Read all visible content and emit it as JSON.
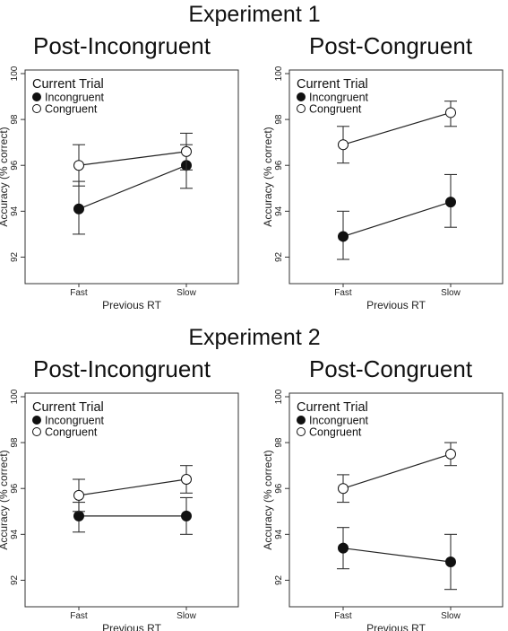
{
  "experiment_titles": [
    "Experiment 1",
    "Experiment 2"
  ],
  "legend": {
    "title": "Current Trial",
    "incongruent": "Incongruent",
    "congruent": "Congruent"
  },
  "colors": {
    "incongruent_fill": "#111111",
    "congruent_fill": "#ffffff",
    "line": "#222222"
  },
  "chart_data": [
    {
      "type": "line",
      "experiment": "Experiment 1",
      "title": "Post-Incongruent",
      "xlabel": "Previous RT",
      "ylabel": "Accuracy (% correct)",
      "categories": [
        "Fast",
        "Slow"
      ],
      "ylim": [
        91,
        100
      ],
      "yticks": [
        "92",
        "94",
        "96",
        "98",
        "100"
      ],
      "legend_position": "top-left",
      "series": [
        {
          "name": "Incongruent",
          "values": [
            94.1,
            96.0
          ],
          "err_low": [
            93.0,
            95.0
          ],
          "err_high": [
            95.3,
            96.9
          ]
        },
        {
          "name": "Congruent",
          "values": [
            96.0,
            96.6
          ],
          "err_low": [
            95.1,
            95.8
          ],
          "err_high": [
            96.9,
            97.4
          ]
        }
      ]
    },
    {
      "type": "line",
      "experiment": "Experiment 1",
      "title": "Post-Congruent",
      "xlabel": "Previous RT",
      "ylabel": "Accuracy (% correct)",
      "categories": [
        "Fast",
        "Slow"
      ],
      "ylim": [
        91,
        100
      ],
      "yticks": [
        "92",
        "94",
        "96",
        "98",
        "100"
      ],
      "legend_position": "top-left",
      "series": [
        {
          "name": "Incongruent",
          "values": [
            92.9,
            94.4
          ],
          "err_low": [
            91.9,
            93.3
          ],
          "err_high": [
            94.0,
            95.6
          ]
        },
        {
          "name": "Congruent",
          "values": [
            96.9,
            98.3
          ],
          "err_low": [
            96.1,
            97.7
          ],
          "err_high": [
            97.7,
            98.8
          ]
        }
      ]
    },
    {
      "type": "line",
      "experiment": "Experiment 2",
      "title": "Post-Incongruent",
      "xlabel": "Previous RT",
      "ylabel": "Accuracy (% correct)",
      "categories": [
        "Fast",
        "Slow"
      ],
      "ylim": [
        91,
        100
      ],
      "yticks": [
        "92",
        "94",
        "96",
        "98",
        "100"
      ],
      "legend_position": "top-left",
      "series": [
        {
          "name": "Incongruent",
          "values": [
            94.8,
            94.8
          ],
          "err_low": [
            94.1,
            94.0
          ],
          "err_high": [
            95.4,
            95.6
          ]
        },
        {
          "name": "Congruent",
          "values": [
            95.7,
            96.4
          ],
          "err_low": [
            95.0,
            95.8
          ],
          "err_high": [
            96.4,
            97.0
          ]
        }
      ]
    },
    {
      "type": "line",
      "experiment": "Experiment 2",
      "title": "Post-Congruent",
      "xlabel": "Previous RT",
      "ylabel": "Accuracy (% correct)",
      "categories": [
        "Fast",
        "Slow"
      ],
      "ylim": [
        91,
        100
      ],
      "yticks": [
        "92",
        "94",
        "96",
        "98",
        "100"
      ],
      "legend_position": "top-left",
      "series": [
        {
          "name": "Incongruent",
          "values": [
            93.4,
            92.8
          ],
          "err_low": [
            92.5,
            91.6
          ],
          "err_high": [
            94.3,
            94.0
          ]
        },
        {
          "name": "Congruent",
          "values": [
            96.0,
            97.5
          ],
          "err_low": [
            95.4,
            97.0
          ],
          "err_high": [
            96.6,
            98.0
          ]
        }
      ]
    }
  ]
}
